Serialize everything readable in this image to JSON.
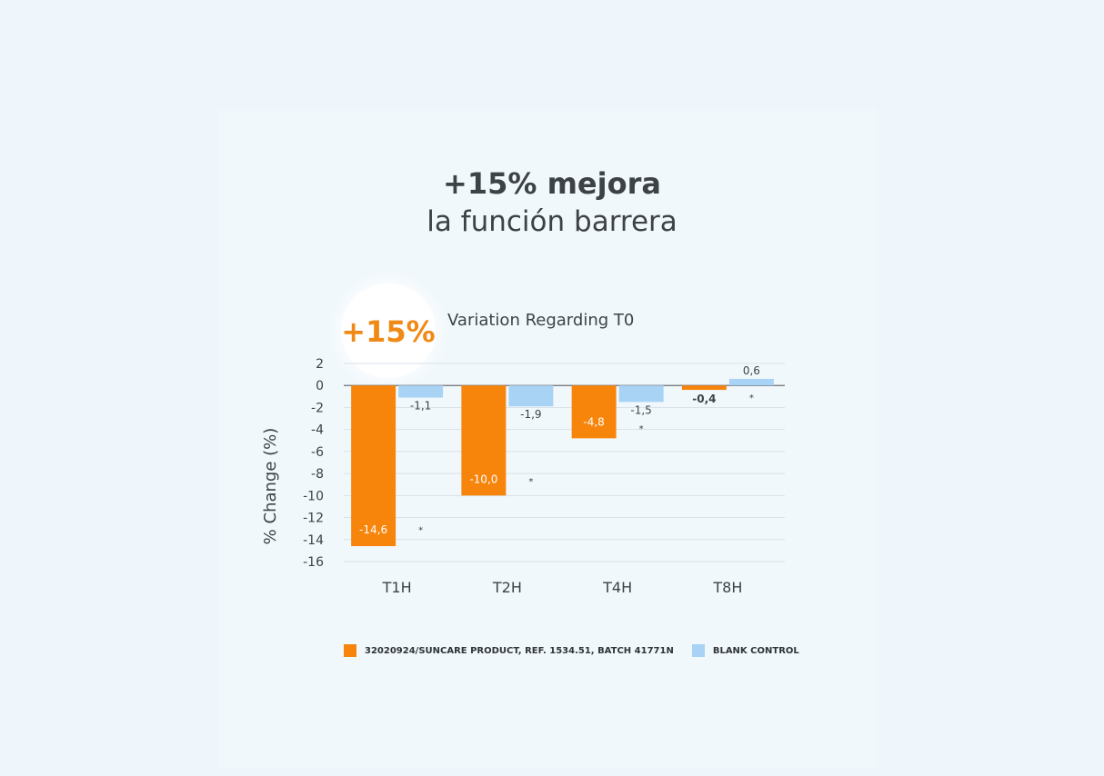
{
  "heading": {
    "title": "+15% mejora",
    "subtitle": "la función barrera"
  },
  "badge": {
    "text": "+15%"
  },
  "colors": {
    "product": "#f7850c",
    "control": "#a8d3f5",
    "badge_text": "#ef8a16",
    "text": "#3d4247",
    "grid": "#d9e2e8",
    "zero_line": "#6b7075",
    "background": "#eef6fb"
  },
  "chart_data": {
    "type": "bar",
    "title": "Variation Regarding T0",
    "ylabel": "% Change (%)",
    "xlabel": "",
    "categories": [
      "T1H",
      "T2H",
      "T4H",
      "T8H"
    ],
    "ylim": [
      -16,
      2
    ],
    "yticks": [
      2,
      0,
      -2,
      -4,
      -6,
      -8,
      -10,
      -12,
      -14,
      -16
    ],
    "grid": true,
    "legend_position": "bottom",
    "series": [
      {
        "name": "32020924/SUNCARE PRODUCT, REF. 1534.51, BATCH 41771N",
        "values": [
          -14.6,
          -10.0,
          -4.8,
          -0.4
        ],
        "labels": [
          "-14,6",
          "-10,0",
          "-4,8",
          "-0,4"
        ],
        "color": "#f7850c"
      },
      {
        "name": "BLANK CONTROL",
        "values": [
          -1.1,
          -1.9,
          -1.5,
          0.6
        ],
        "labels": [
          "-1,1",
          "-1,9",
          "-1,5",
          "0,6"
        ],
        "color": "#a8d3f5"
      }
    ],
    "annotations": [
      "*",
      "*",
      "*",
      "*"
    ]
  }
}
